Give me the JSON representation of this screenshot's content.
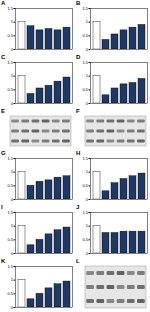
{
  "chart_data": [
    {
      "type": "bar",
      "title": "A",
      "categories": [
        null,
        null,
        null,
        null,
        null,
        null
      ],
      "values": [
        1.0,
        0.85,
        0.7,
        0.75,
        0.7,
        0.8
      ],
      "colors": [
        "#ffffff",
        "#1f3864",
        "#1f3864",
        "#1f3864",
        "#1f3864",
        "#1f3864"
      ],
      "ylim": [
        0,
        1.5
      ],
      "yticks": [
        0,
        0.5,
        1,
        1.5
      ],
      "tick_labels": "y"
    },
    {
      "type": "bar",
      "title": "B",
      "categories": [
        null,
        null,
        null,
        null,
        null,
        null
      ],
      "values": [
        1.0,
        0.35,
        0.55,
        0.7,
        0.8,
        0.9
      ],
      "colors": [
        "#ffffff",
        "#1f3864",
        "#1f3864",
        "#1f3864",
        "#1f3864",
        "#1f3864"
      ],
      "ylim": [
        0,
        1.5
      ],
      "yticks": [
        0,
        0.5,
        1,
        1.5
      ],
      "tick_labels": "y"
    },
    {
      "type": "bar",
      "title": "C",
      "categories": [
        null,
        null,
        null,
        null,
        null,
        null
      ],
      "values": [
        1.0,
        0.35,
        0.55,
        0.65,
        0.8,
        0.95
      ],
      "colors": [
        "#ffffff",
        "#1f3864",
        "#1f3864",
        "#1f3864",
        "#1f3864",
        "#1f3864"
      ],
      "ylim": [
        0,
        1.5
      ],
      "yticks": [
        0,
        0.5,
        1,
        1.5
      ],
      "tick_labels": "y"
    },
    {
      "type": "bar",
      "title": "D",
      "categories": [
        null,
        null,
        null,
        null,
        null,
        null
      ],
      "values": [
        1.0,
        0.3,
        0.55,
        0.7,
        0.75,
        0.9
      ],
      "colors": [
        "#ffffff",
        "#1f3864",
        "#1f3864",
        "#1f3864",
        "#1f3864",
        "#1f3864"
      ],
      "ylim": [
        0,
        1.5
      ],
      "yticks": [
        0,
        0.5,
        1,
        1.5
      ],
      "tick_labels": "y"
    },
    {
      "type": "blot",
      "title": "E"
    },
    {
      "type": "blot",
      "title": "F"
    },
    {
      "type": "bar",
      "title": "G",
      "categories": [
        null,
        null,
        null,
        null,
        null,
        null
      ],
      "values": [
        1.0,
        0.5,
        0.65,
        0.7,
        0.8,
        0.85
      ],
      "colors": [
        "#ffffff",
        "#1f3864",
        "#1f3864",
        "#1f3864",
        "#1f3864",
        "#1f3864"
      ],
      "ylim": [
        0,
        1.5
      ],
      "yticks": [
        0,
        0.5,
        1,
        1.5
      ],
      "tick_labels": "y"
    },
    {
      "type": "bar",
      "title": "H",
      "categories": [
        null,
        null,
        null,
        null,
        null,
        null
      ],
      "values": [
        1.0,
        0.3,
        0.6,
        0.75,
        0.85,
        0.95
      ],
      "colors": [
        "#ffffff",
        "#1f3864",
        "#1f3864",
        "#1f3864",
        "#1f3864",
        "#1f3864"
      ],
      "ylim": [
        0,
        1.5
      ],
      "yticks": [
        0,
        0.5,
        1,
        1.5
      ],
      "tick_labels": "y"
    },
    {
      "type": "bar",
      "title": "I",
      "categories": [
        null,
        null,
        null,
        null,
        null,
        null
      ],
      "values": [
        1.0,
        0.3,
        0.5,
        0.7,
        0.85,
        0.95
      ],
      "colors": [
        "#ffffff",
        "#1f3864",
        "#1f3864",
        "#1f3864",
        "#1f3864",
        "#1f3864"
      ],
      "ylim": [
        0,
        1.5
      ],
      "yticks": [
        0,
        0.5,
        1,
        1.5
      ],
      "tick_labels": "y"
    },
    {
      "type": "bar",
      "title": "J",
      "categories": [
        null,
        null,
        null,
        null,
        null,
        null
      ],
      "values": [
        1.0,
        0.75,
        0.75,
        0.8,
        0.8,
        0.8
      ],
      "colors": [
        "#ffffff",
        "#1f3864",
        "#1f3864",
        "#1f3864",
        "#1f3864",
        "#1f3864"
      ],
      "ylim": [
        0,
        1.5
      ],
      "yticks": [
        0,
        0.5,
        1,
        1.5
      ],
      "tick_labels": "y"
    },
    {
      "type": "bar",
      "title": "K",
      "categories": [
        null,
        null,
        null,
        null,
        null,
        null
      ],
      "values": [
        1.0,
        0.3,
        0.5,
        0.7,
        0.85,
        0.95
      ],
      "colors": [
        "#ffffff",
        "#1f3864",
        "#1f3864",
        "#1f3864",
        "#1f3864",
        "#1f3864"
      ],
      "ylim": [
        0,
        1.5
      ],
      "yticks": [
        0,
        0.5,
        1,
        1.5
      ],
      "tick_labels": "y"
    },
    {
      "type": "blot",
      "title": "L"
    }
  ]
}
